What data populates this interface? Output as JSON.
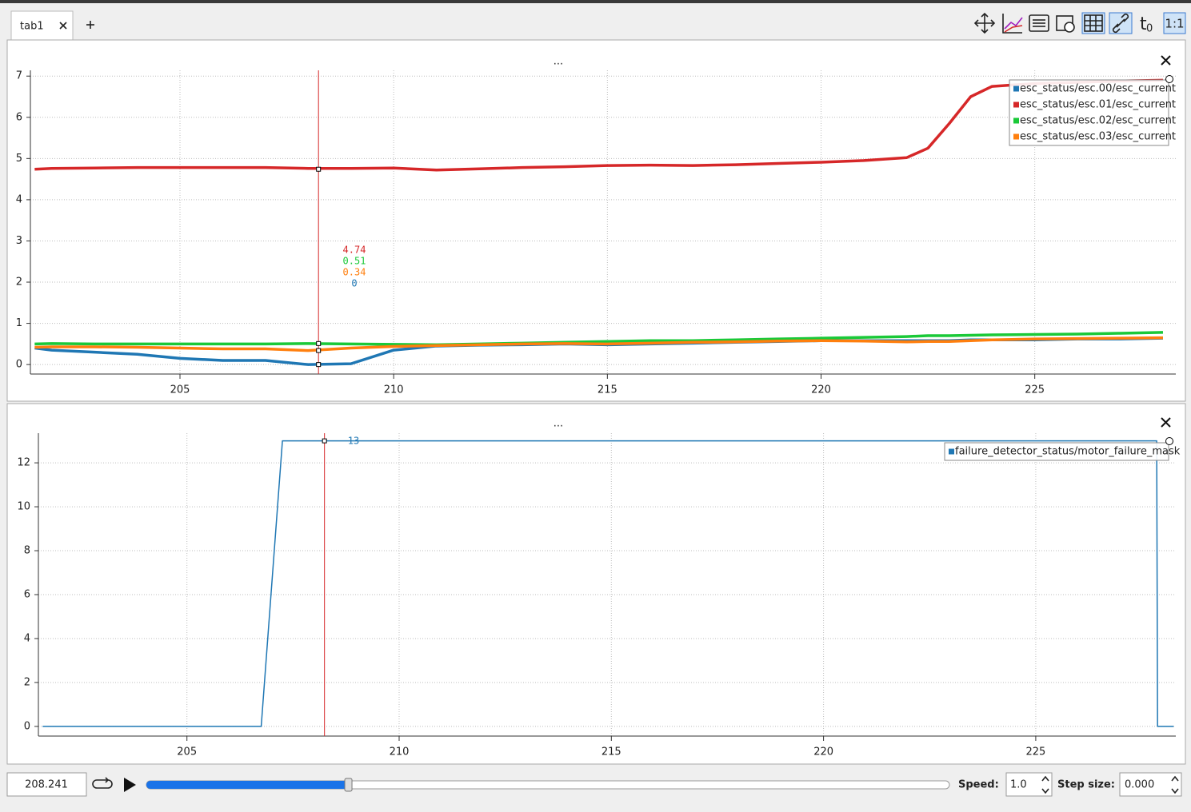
{
  "chart_data": [
    {
      "type": "line",
      "title": "...",
      "x": [
        201.6,
        202,
        203,
        204,
        205,
        206,
        207,
        208,
        209,
        210,
        211,
        212,
        213,
        214,
        215,
        216,
        217,
        218,
        219,
        220,
        221,
        222,
        222.5,
        223,
        223.5,
        224,
        225,
        226,
        227,
        228
      ],
      "series": [
        {
          "name": "esc_status/esc.00/esc_current",
          "color": "#1f77b4",
          "cursor_value": 0,
          "values": [
            0.4,
            0.35,
            0.3,
            0.25,
            0.15,
            0.1,
            0.1,
            0.0,
            0.02,
            0.35,
            0.45,
            0.47,
            0.48,
            0.5,
            0.48,
            0.5,
            0.52,
            0.54,
            0.56,
            0.58,
            0.58,
            0.58,
            0.58,
            0.58,
            0.6,
            0.6,
            0.6,
            0.62,
            0.62,
            0.64
          ]
        },
        {
          "name": "esc_status/esc.01/esc_current",
          "color": "#d62728",
          "cursor_value": 4.74,
          "values": [
            4.74,
            4.76,
            4.77,
            4.78,
            4.78,
            4.78,
            4.78,
            4.76,
            4.76,
            4.77,
            4.72,
            4.75,
            4.78,
            4.8,
            4.83,
            4.84,
            4.83,
            4.85,
            4.88,
            4.91,
            4.95,
            5.02,
            5.25,
            5.85,
            6.5,
            6.75,
            6.82,
            6.85,
            6.88,
            6.9
          ]
        },
        {
          "name": "esc_status/esc.02/esc_current",
          "color": "#1ac938",
          "cursor_value": 0.51,
          "values": [
            0.5,
            0.51,
            0.5,
            0.5,
            0.5,
            0.5,
            0.5,
            0.51,
            0.5,
            0.49,
            0.48,
            0.5,
            0.52,
            0.54,
            0.56,
            0.58,
            0.58,
            0.6,
            0.62,
            0.64,
            0.66,
            0.68,
            0.7,
            0.7,
            0.71,
            0.72,
            0.73,
            0.74,
            0.76,
            0.78
          ]
        },
        {
          "name": "esc_status/esc.03/esc_current",
          "color": "#ff7f0e",
          "cursor_value": 0.34,
          "values": [
            0.42,
            0.43,
            0.43,
            0.42,
            0.4,
            0.38,
            0.38,
            0.34,
            0.4,
            0.44,
            0.46,
            0.48,
            0.5,
            0.51,
            0.5,
            0.52,
            0.54,
            0.55,
            0.57,
            0.58,
            0.57,
            0.55,
            0.56,
            0.56,
            0.58,
            0.6,
            0.62,
            0.63,
            0.64,
            0.65
          ]
        }
      ],
      "xlim": [
        201.5,
        228.3
      ],
      "xticks": [
        205,
        210,
        215,
        220,
        225
      ],
      "ylim": [
        -0.23,
        7.14
      ],
      "yticks": [
        0,
        1,
        2,
        3,
        4,
        5,
        6,
        7
      ],
      "grid": true,
      "legend": "top-right",
      "cursor_color": "#d62728"
    },
    {
      "type": "line",
      "title": "...",
      "x": [
        201.6,
        206.75,
        207.25,
        227.85,
        227.87,
        228.25
      ],
      "series": [
        {
          "name": "failure_detector_status/motor_failure_mask",
          "color": "#1f77b4",
          "cursor_value": 13,
          "values": [
            0,
            0,
            13,
            13,
            0,
            0
          ]
        }
      ],
      "xlim": [
        201.5,
        228.3
      ],
      "xticks": [
        205,
        210,
        215,
        220,
        225
      ],
      "ylim": [
        -0.44,
        13.35
      ],
      "yticks": [
        0,
        2,
        4,
        6,
        8,
        10,
        12
      ],
      "grid": true,
      "legend": "top-right",
      "cursor_color": "#d62728"
    }
  ],
  "ui": {
    "tab": "tab1",
    "time": 208.241,
    "speed_label": "Speed:",
    "speed": "1.0",
    "step_label": "Step size:",
    "step": "0.000",
    "toolbar_t": "t",
    "toolbar_t_sub": "0",
    "toolbar_ratio": "1:1"
  }
}
